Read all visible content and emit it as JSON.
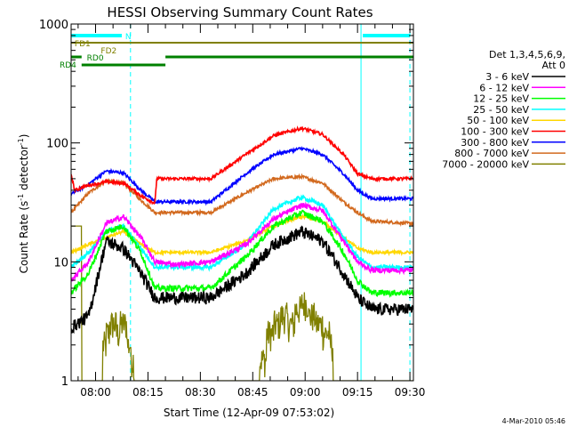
{
  "chart_data": {
    "type": "line",
    "title": "HESSI Observing Summary Count Rates",
    "xlabel": "Start Time (12-Apr-09 07:53:02)",
    "ylabel_main": "Count Rate (s",
    "ylabel_sup1": "-1",
    "ylabel_mid": " detector",
    "ylabel_sup2": "-1",
    "ylabel_end": ")",
    "yscale": "log",
    "ylim": [
      1,
      1000
    ],
    "xlim_min": [
      0,
      98
    ],
    "x_unit": "minutes after 07:53:02",
    "y_ticks": [
      {
        "value": 1,
        "label": "1"
      },
      {
        "value": 10,
        "label": "10"
      },
      {
        "value": 100,
        "label": "100"
      },
      {
        "value": 1000,
        "label": "1000"
      }
    ],
    "x_ticks": [
      {
        "min": 7,
        "label": "08:00"
      },
      {
        "min": 22,
        "label": "08:15"
      },
      {
        "min": 37,
        "label": "08:30"
      },
      {
        "min": 52,
        "label": "08:45"
      },
      {
        "min": 67,
        "label": "09:00"
      },
      {
        "min": 82,
        "label": "09:15"
      },
      {
        "min": 97,
        "label": "09:30"
      }
    ],
    "legend_header": [
      "Det 1,3,4,5,6,9,",
      "Att 0"
    ],
    "legend_placement": "right",
    "series": [
      {
        "name": "3 - 6 keV",
        "color": "#000000",
        "noise": 0.12,
        "points": [
          [
            0,
            2.8
          ],
          [
            5,
            3.5
          ],
          [
            10,
            15
          ],
          [
            15,
            13
          ],
          [
            20,
            8
          ],
          [
            24,
            5
          ],
          [
            30,
            5
          ],
          [
            40,
            5
          ],
          [
            50,
            8
          ],
          [
            58,
            14
          ],
          [
            66,
            18
          ],
          [
            72,
            15
          ],
          [
            78,
            8
          ],
          [
            82,
            5
          ],
          [
            86,
            4
          ],
          [
            98,
            4
          ]
        ]
      },
      {
        "name": "6 - 12 keV",
        "color": "#ff00ff",
        "noise": 0.05,
        "points": [
          [
            0,
            7
          ],
          [
            5,
            10
          ],
          [
            10,
            21
          ],
          [
            15,
            24
          ],
          [
            20,
            16
          ],
          [
            24,
            10
          ],
          [
            30,
            9.5
          ],
          [
            40,
            10
          ],
          [
            50,
            14
          ],
          [
            58,
            23
          ],
          [
            66,
            30
          ],
          [
            72,
            27
          ],
          [
            78,
            15
          ],
          [
            82,
            10
          ],
          [
            86,
            8.5
          ],
          [
            98,
            8.5
          ]
        ]
      },
      {
        "name": "12 - 25 keV",
        "color": "#00ff00",
        "noise": 0.06,
        "points": [
          [
            0,
            5.5
          ],
          [
            5,
            8
          ],
          [
            10,
            18
          ],
          [
            15,
            20
          ],
          [
            20,
            12
          ],
          [
            24,
            6
          ],
          [
            30,
            6
          ],
          [
            40,
            6
          ],
          [
            50,
            11
          ],
          [
            58,
            20
          ],
          [
            66,
            26
          ],
          [
            72,
            22
          ],
          [
            78,
            12
          ],
          [
            82,
            7
          ],
          [
            86,
            5.5
          ],
          [
            98,
            5.5
          ]
        ]
      },
      {
        "name": "25 - 50 keV",
        "color": "#00ffff",
        "noise": 0.04,
        "points": [
          [
            0,
            9
          ],
          [
            5,
            12
          ],
          [
            10,
            18
          ],
          [
            15,
            20
          ],
          [
            20,
            13
          ],
          [
            24,
            9
          ],
          [
            30,
            9
          ],
          [
            40,
            9
          ],
          [
            50,
            14
          ],
          [
            58,
            28
          ],
          [
            66,
            35
          ],
          [
            72,
            30
          ],
          [
            78,
            16
          ],
          [
            82,
            11
          ],
          [
            86,
            9
          ],
          [
            98,
            9
          ]
        ]
      },
      {
        "name": "50 - 100 keV",
        "color": "#ffd700",
        "noise": 0.03,
        "points": [
          [
            0,
            12
          ],
          [
            5,
            14
          ],
          [
            10,
            16
          ],
          [
            15,
            18
          ],
          [
            20,
            14
          ],
          [
            24,
            12
          ],
          [
            30,
            12
          ],
          [
            40,
            12
          ],
          [
            50,
            15
          ],
          [
            58,
            20
          ],
          [
            66,
            24
          ],
          [
            72,
            22
          ],
          [
            78,
            16
          ],
          [
            82,
            13
          ],
          [
            86,
            12
          ],
          [
            98,
            12
          ]
        ]
      },
      {
        "name": "100 - 300 keV",
        "color": "#ff0000",
        "noise": 0.03,
        "points": [
          [
            0,
            55
          ],
          [
            1,
            40
          ],
          [
            5,
            44
          ],
          [
            10,
            47
          ],
          [
            15,
            46
          ],
          [
            20,
            36
          ],
          [
            24,
            31
          ],
          [
            24.5,
            50
          ],
          [
            30,
            50
          ],
          [
            40,
            50
          ],
          [
            50,
            80
          ],
          [
            58,
            115
          ],
          [
            66,
            133
          ],
          [
            72,
            118
          ],
          [
            78,
            80
          ],
          [
            82,
            55
          ],
          [
            86,
            50
          ],
          [
            98,
            50
          ]
        ]
      },
      {
        "name": "300 - 800 keV",
        "color": "#0000ff",
        "noise": 0.03,
        "points": [
          [
            0,
            37
          ],
          [
            5,
            45
          ],
          [
            10,
            58
          ],
          [
            15,
            56
          ],
          [
            20,
            40
          ],
          [
            24,
            32
          ],
          [
            30,
            32
          ],
          [
            40,
            32
          ],
          [
            50,
            55
          ],
          [
            58,
            80
          ],
          [
            66,
            90
          ],
          [
            72,
            80
          ],
          [
            78,
            55
          ],
          [
            82,
            40
          ],
          [
            86,
            34
          ],
          [
            98,
            34
          ]
        ]
      },
      {
        "name": "800 - 7000 keV",
        "color": "#d2691e",
        "noise": 0.03,
        "points": [
          [
            0,
            26
          ],
          [
            5,
            38
          ],
          [
            10,
            48
          ],
          [
            15,
            46
          ],
          [
            20,
            33
          ],
          [
            24,
            26
          ],
          [
            30,
            26
          ],
          [
            40,
            26
          ],
          [
            50,
            38
          ],
          [
            58,
            50
          ],
          [
            66,
            52
          ],
          [
            72,
            46
          ],
          [
            78,
            32
          ],
          [
            82,
            26
          ],
          [
            86,
            22
          ],
          [
            98,
            21
          ]
        ]
      },
      {
        "name": "7000 - 20000 keV",
        "color": "#808000",
        "noise": 0.0,
        "steps": true,
        "points": [
          [
            0,
            20
          ],
          [
            3,
            20
          ],
          [
            3,
            1
          ],
          [
            9,
            1
          ],
          [
            9,
            2
          ],
          [
            10,
            2.5
          ],
          [
            11,
            3
          ],
          [
            13,
            2.5
          ],
          [
            14,
            3
          ],
          [
            16,
            2
          ],
          [
            17,
            1.5
          ],
          [
            18,
            1
          ],
          [
            52,
            1
          ],
          [
            54,
            1.5
          ],
          [
            56,
            2.5
          ],
          [
            58,
            3
          ],
          [
            60,
            3.5
          ],
          [
            62,
            3
          ],
          [
            64,
            4
          ],
          [
            66,
            4.5
          ],
          [
            68,
            3.5
          ],
          [
            70,
            3
          ],
          [
            72,
            2.5
          ],
          [
            74,
            2
          ],
          [
            75,
            1
          ],
          [
            98,
            1
          ]
        ]
      }
    ],
    "annotations": {
      "n_label": "N",
      "fd1_label": "FD1",
      "fd2_label": "FD2",
      "rd0_label": "RD0",
      "rd4_label": "RD4",
      "night_solid_min": [
        0,
        83
      ],
      "night_dashed_min": [
        17,
        97
      ],
      "colors": {
        "night": "#00ffff",
        "fd": "#808000",
        "rd": "#008000"
      }
    },
    "footer_date": "4-Mar-2010 05:46",
    "grid": false
  }
}
